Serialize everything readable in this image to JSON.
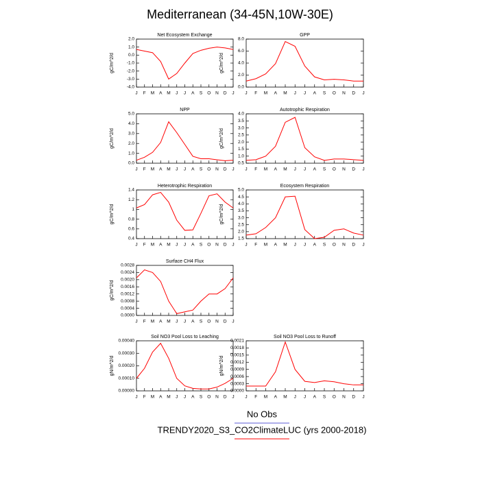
{
  "title": "Mediterranean (34-45N,10W-30E)",
  "legend": [
    {
      "label": "No Obs",
      "color": "#5b5bd6"
    },
    {
      "label": "TRENDY2020_S3_CO2ClimateLUC (yrs 2000-2018)",
      "color": "#ff0000"
    }
  ],
  "chart_data": [
    {
      "type": "line",
      "title": "Net Ecosystem Exchange",
      "ylabel": "gC/m^2/d",
      "categories": [
        "J",
        "F",
        "M",
        "A",
        "M",
        "J",
        "J",
        "A",
        "S",
        "O",
        "N",
        "D",
        "J"
      ],
      "values": [
        0.7,
        0.5,
        0.3,
        -0.8,
        -3.0,
        -2.3,
        -1.0,
        0.2,
        0.6,
        0.85,
        1.0,
        0.9,
        0.7
      ],
      "color": "#ff0000",
      "ylim": [
        -4,
        2
      ],
      "yticks": [
        {
          "value": -4,
          "label": "-4.0"
        },
        {
          "value": -3,
          "label": "-3.0"
        },
        {
          "value": -2,
          "label": "-2.0"
        },
        {
          "value": -1,
          "label": "-1.0"
        },
        {
          "value": 0,
          "label": "0.0"
        },
        {
          "value": 1,
          "label": "1.0"
        },
        {
          "value": 2,
          "label": "2.0"
        }
      ]
    },
    {
      "type": "line",
      "title": "GPP",
      "ylabel": "gC/m^2/d",
      "categories": [
        "J",
        "F",
        "M",
        "A",
        "M",
        "J",
        "J",
        "A",
        "S",
        "O",
        "N",
        "D",
        "J"
      ],
      "values": [
        1.0,
        1.4,
        2.2,
        3.9,
        7.6,
        6.8,
        3.5,
        1.7,
        1.2,
        1.3,
        1.2,
        1.0,
        1.0
      ],
      "color": "#ff0000",
      "ylim": [
        0,
        8
      ],
      "yticks": [
        {
          "value": 0,
          "label": "0.0"
        },
        {
          "value": 2,
          "label": "2.0"
        },
        {
          "value": 4,
          "label": "4.0"
        },
        {
          "value": 6,
          "label": "6.0"
        },
        {
          "value": 8,
          "label": "8.0"
        }
      ]
    },
    {
      "type": "line",
      "title": "NPP",
      "ylabel": "gC/m^2/d",
      "categories": [
        "J",
        "F",
        "M",
        "A",
        "M",
        "J",
        "J",
        "A",
        "S",
        "O",
        "N",
        "D",
        "J"
      ],
      "values": [
        0.3,
        0.6,
        1.1,
        2.1,
        4.2,
        3.1,
        1.9,
        0.7,
        0.45,
        0.45,
        0.35,
        0.25,
        0.3
      ],
      "color": "#ff0000",
      "ylim": [
        0,
        5
      ],
      "yticks": [
        {
          "value": 0,
          "label": "0.0"
        },
        {
          "value": 1,
          "label": "1.0"
        },
        {
          "value": 2,
          "label": "2.0"
        },
        {
          "value": 3,
          "label": "3.0"
        },
        {
          "value": 4,
          "label": "4.0"
        },
        {
          "value": 5,
          "label": "5.0"
        }
      ]
    },
    {
      "type": "line",
      "title": "Autotrophic Respiration",
      "ylabel": "gC/m^2/d",
      "categories": [
        "J",
        "F",
        "M",
        "A",
        "M",
        "J",
        "J",
        "A",
        "S",
        "O",
        "N",
        "D",
        "J"
      ],
      "values": [
        0.7,
        0.75,
        1.0,
        1.7,
        3.4,
        3.75,
        1.6,
        0.95,
        0.7,
        0.8,
        0.8,
        0.75,
        0.7
      ],
      "color": "#ff0000",
      "ylim": [
        0.5,
        4.0
      ],
      "yticks": [
        0.5,
        {
          "value": 1,
          "label": "1.0"
        },
        1.5,
        {
          "value": 2,
          "label": "2.0"
        },
        2.5,
        {
          "value": 3,
          "label": "3.0"
        },
        3.5,
        {
          "value": 4,
          "label": "4.0"
        }
      ]
    },
    {
      "type": "line",
      "title": "Heterotrophic Respiration",
      "ylabel": "gC/m^2/d",
      "categories": [
        "J",
        "F",
        "M",
        "A",
        "M",
        "J",
        "J",
        "A",
        "S",
        "O",
        "N",
        "D",
        "J"
      ],
      "values": [
        1.03,
        1.1,
        1.3,
        1.35,
        1.15,
        0.78,
        0.57,
        0.58,
        0.92,
        1.28,
        1.32,
        1.15,
        1.03
      ],
      "color": "#ff0000",
      "ylim": [
        0.4,
        1.4
      ],
      "yticks": [
        0.4,
        0.6,
        0.8,
        1,
        1.2,
        1.4
      ]
    },
    {
      "type": "line",
      "title": "Ecosystem Respiration",
      "ylabel": "gC/m^2/d",
      "categories": [
        "J",
        "F",
        "M",
        "A",
        "M",
        "J",
        "J",
        "A",
        "S",
        "O",
        "N",
        "D",
        "J"
      ],
      "values": [
        1.75,
        1.85,
        2.3,
        3.0,
        4.5,
        4.55,
        2.15,
        1.5,
        1.6,
        2.1,
        2.2,
        1.9,
        1.75
      ],
      "color": "#ff0000",
      "ylim": [
        1.5,
        5.0
      ],
      "yticks": [
        1.5,
        {
          "value": 2,
          "label": "2.0"
        },
        2.5,
        {
          "value": 3,
          "label": "3.0"
        },
        3.5,
        {
          "value": 4,
          "label": "4.0"
        },
        4.5,
        {
          "value": 5,
          "label": "5.0"
        }
      ]
    },
    {
      "type": "line",
      "title": "Surface CH4 Flux",
      "ylabel": "gC/m^2/d",
      "categories": [
        "J",
        "F",
        "M",
        "A",
        "M",
        "J",
        "J",
        "A",
        "S",
        "O",
        "N",
        "D",
        "J"
      ],
      "values": [
        0.0021,
        0.00255,
        0.0024,
        0.0019,
        0.0008,
        0.0001,
        0.0002,
        0.0003,
        0.0008,
        0.0012,
        0.0012,
        0.0015,
        0.0021
      ],
      "color": "#ff0000",
      "ylim": [
        0,
        0.0028
      ],
      "yticks": [
        {
          "value": 0,
          "label": "0.0000"
        },
        {
          "value": 0.0004,
          "label": "0.0004"
        },
        {
          "value": 0.0008,
          "label": "0.0008"
        },
        {
          "value": 0.0012,
          "label": "0.0012"
        },
        {
          "value": 0.0016,
          "label": "0.0016"
        },
        {
          "value": 0.002,
          "label": "0.0020"
        },
        {
          "value": 0.0024,
          "label": "0.0024"
        },
        {
          "value": 0.0028,
          "label": "0.0028"
        }
      ]
    },
    {
      "type": "line",
      "title": "Soil NO3 Pool Loss to Leaching",
      "ylabel": "gN/m^2/d",
      "categories": [
        "J",
        "F",
        "M",
        "A",
        "M",
        "J",
        "J",
        "A",
        "S",
        "O",
        "N",
        "D",
        "J"
      ],
      "values": [
        0.0001,
        0.00018,
        0.00031,
        0.00038,
        0.00026,
        0.0001,
        4e-05,
        2e-05,
        1.5e-05,
        1.5e-05,
        3e-05,
        6e-05,
        0.0001
      ],
      "color": "#ff0000",
      "ylim": [
        0,
        0.0004
      ],
      "yticks": [
        {
          "value": 0,
          "label": "0.00000"
        },
        {
          "value": 0.0001,
          "label": "0.00010"
        },
        {
          "value": 0.0002,
          "label": "0.00020"
        },
        {
          "value": 0.0003,
          "label": "0.00030"
        },
        {
          "value": 0.0004,
          "label": "0.00040"
        }
      ]
    },
    {
      "type": "line",
      "title": "Soil NO3 Pool Loss to Runoff",
      "ylabel": "gN/m^2/d",
      "categories": [
        "J",
        "F",
        "M",
        "A",
        "M",
        "J",
        "J",
        "A",
        "S",
        "O",
        "N",
        "D",
        "J"
      ],
      "values": [
        0.0002,
        0.0002,
        0.0002,
        0.0008,
        0.00205,
        0.0009,
        0.0004,
        0.00035,
        0.00042,
        0.00038,
        0.0003,
        0.00025,
        0.00025
      ],
      "color": "#ff0000",
      "ylim": [
        0,
        0.0021
      ],
      "yticks": [
        {
          "value": 0,
          "label": "0.0000"
        },
        {
          "value": 0.0003,
          "label": "0.0003"
        },
        {
          "value": 0.0006,
          "label": "0.0006"
        },
        {
          "value": 0.0009,
          "label": "0.0009"
        },
        {
          "value": 0.0012,
          "label": "0.0012"
        },
        {
          "value": 0.0015,
          "label": "0.0015"
        },
        {
          "value": 0.0018,
          "label": "0.0018"
        },
        {
          "value": 0.0021,
          "label": "0.0021"
        }
      ]
    }
  ]
}
